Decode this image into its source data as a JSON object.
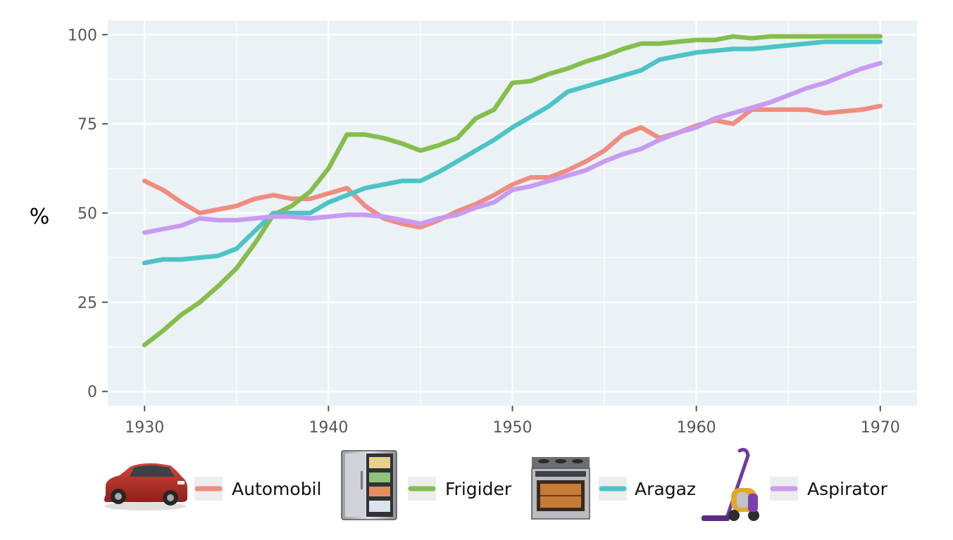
{
  "chart_data": {
    "type": "line",
    "title": "",
    "xlabel": "",
    "ylabel": "%",
    "xlim": [
      1928,
      1972
    ],
    "ylim": [
      -4,
      104
    ],
    "x_ticks": [
      1930,
      1940,
      1950,
      1960,
      1970
    ],
    "y_ticks": [
      0,
      25,
      50,
      75,
      100
    ],
    "grid": true,
    "legend_position": "bottom",
    "x": [
      1930,
      1931,
      1932,
      1933,
      1934,
      1935,
      1936,
      1937,
      1938,
      1939,
      1940,
      1941,
      1942,
      1943,
      1944,
      1945,
      1946,
      1947,
      1948,
      1949,
      1950,
      1951,
      1952,
      1953,
      1954,
      1955,
      1956,
      1957,
      1958,
      1959,
      1960,
      1961,
      1962,
      1963,
      1964,
      1965,
      1966,
      1967,
      1968,
      1969,
      1970
    ],
    "series": [
      {
        "name": "Automobil",
        "color": "#F08C80",
        "icon": "car-icon",
        "values": [
          59,
          56.5,
          53,
          50,
          51,
          52,
          54,
          55,
          54,
          54,
          55.5,
          57,
          52,
          48.5,
          47,
          46,
          48,
          50.5,
          52.5,
          55,
          58,
          60,
          60,
          62,
          64.5,
          67.5,
          72,
          74,
          71,
          72.5,
          74.5,
          76,
          75,
          79,
          79,
          79,
          79,
          78,
          78.5,
          79,
          80
        ]
      },
      {
        "name": "Frigider",
        "color": "#86BD4C",
        "icon": "refrigerator-icon",
        "values": [
          13,
          17,
          21.5,
          25,
          29.5,
          34.5,
          41.5,
          49.5,
          52,
          56,
          62.5,
          72,
          72,
          71,
          69.5,
          67.5,
          69,
          71,
          76.5,
          79,
          86.5,
          87,
          89,
          90.5,
          92.5,
          94,
          96,
          97.5,
          97.5,
          98,
          98.5,
          98.5,
          99.5,
          99,
          99.5,
          99.5,
          99.5,
          99.5,
          99.5,
          99.5,
          99.5
        ]
      },
      {
        "name": "Aragaz",
        "color": "#4CC4C6",
        "icon": "stove-icon",
        "values": [
          36,
          37,
          37,
          37.5,
          38,
          40,
          45,
          50,
          50,
          50,
          53,
          55,
          57,
          58,
          59,
          59,
          61.5,
          64.5,
          67.5,
          70.5,
          74,
          77,
          80,
          84,
          85.5,
          87,
          88.5,
          90,
          93,
          94,
          95,
          95.5,
          96,
          96,
          96.5,
          97,
          97.5,
          98,
          98,
          98,
          98
        ]
      },
      {
        "name": "Aspirator",
        "color": "#C89BF2",
        "icon": "vacuum-cleaner-icon",
        "values": [
          44.5,
          45.5,
          46.5,
          48.5,
          48,
          48,
          48.5,
          49,
          49,
          48.5,
          49,
          49.5,
          49.5,
          49,
          48,
          47,
          48.5,
          49.5,
          51.5,
          53,
          56.5,
          57.5,
          59,
          60.5,
          62,
          64.5,
          66.5,
          68,
          70.5,
          72.5,
          74,
          76.5,
          78,
          79.5,
          81,
          83,
          85,
          86.5,
          88.5,
          90.5,
          92
        ]
      }
    ]
  }
}
